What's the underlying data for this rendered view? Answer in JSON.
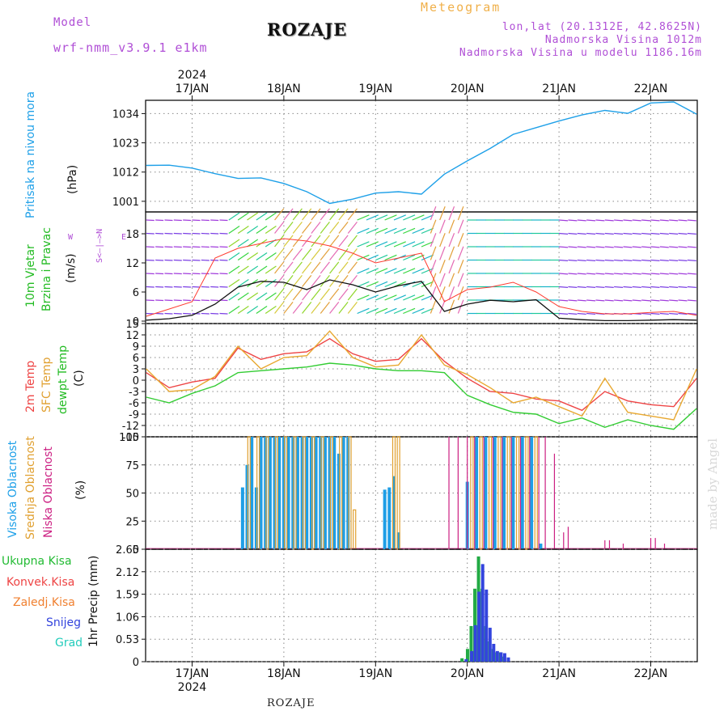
{
  "header": {
    "model_label": "Model",
    "model_name": "wrf-nmm_v3.9.1 e1km",
    "title": "ROZAJE",
    "subtitle": "Meteogram",
    "coords": "lon,lat (20.1312E, 42.8625N)",
    "elevation": "Nadmorska Visina 1012m",
    "model_elevation": "Nadmorska Visina u modelu 1186.16m"
  },
  "footer": {
    "station": "ROZAJE",
    "watermark": "made by Angel"
  },
  "chart_data": [
    {
      "type": "line",
      "panel": "pressure",
      "ylabel": "(hPa)",
      "side_label": "Pritisak na nivou mora",
      "x_ticks": [
        "17JAN",
        "18JAN",
        "19JAN",
        "20JAN",
        "21JAN",
        "22JAN"
      ],
      "year": "2024",
      "yticks": [
        1001,
        1012,
        1023,
        1034
      ],
      "ylim": [
        997,
        1039
      ],
      "color": "#1ea0e8",
      "x": [
        -0.5,
        -0.25,
        0,
        0.25,
        0.5,
        0.75,
        1.0,
        1.25,
        1.5,
        1.75,
        2.0,
        2.25,
        2.5,
        2.75,
        3.0,
        3.25,
        3.5,
        3.75,
        4.0,
        4.25,
        4.5,
        4.75,
        5.0,
        5.25,
        5.5
      ],
      "values": [
        1014.5,
        1014.6,
        1013.5,
        1011.4,
        1009.6,
        1009.8,
        1007.7,
        1004.6,
        1000.2,
        1001.8,
        1004.1,
        1004.6,
        1003.7,
        1011.2,
        1016.2,
        1020.9,
        1026.2,
        1028.7,
        1031.2,
        1033.5,
        1035.2,
        1034.1,
        1038.0,
        1038.4,
        1033.8
      ]
    },
    {
      "type": "line",
      "panel": "wind",
      "ylabel": "(m/s)",
      "side_labels": [
        "10m Vjetar",
        "Brzina i Pravac"
      ],
      "compass_labels": [
        "N",
        "W",
        "E",
        "S"
      ],
      "yticks": [
        0,
        6,
        12,
        18
      ],
      "ylim": [
        -0.5,
        22.5
      ],
      "series": [
        {
          "name": "speed",
          "color": "#111111",
          "x": [
            -0.5,
            -0.25,
            0,
            0.25,
            0.5,
            0.75,
            1.0,
            1.25,
            1.5,
            1.75,
            2.0,
            2.25,
            2.5,
            2.75,
            3.0,
            3.25,
            3.5,
            3.75,
            4.0,
            4.25,
            4.5,
            4.75,
            5.0,
            5.25,
            5.5
          ],
          "values": [
            0.2,
            0.5,
            1.2,
            3.5,
            7.0,
            8.2,
            8.0,
            6.5,
            8.5,
            7.5,
            6.0,
            7.3,
            8.2,
            2.0,
            3.5,
            4.3,
            4.0,
            4.4,
            0.6,
            0.3,
            0.1,
            0.1,
            0.2,
            0.3,
            0.2
          ]
        },
        {
          "name": "gust",
          "color": "#ff3b30",
          "x": [
            -0.5,
            -0.25,
            0,
            0.25,
            0.5,
            0.75,
            1.0,
            1.25,
            1.5,
            1.75,
            2.0,
            2.25,
            2.5,
            2.75,
            3.0,
            3.25,
            3.5,
            3.75,
            4.0,
            4.25,
            4.5,
            4.75,
            5.0,
            5.25,
            5.5
          ],
          "values": [
            1.0,
            2.5,
            4.0,
            13.0,
            15.0,
            16.0,
            17.0,
            16.5,
            15.5,
            14.0,
            12.0,
            13.0,
            14.0,
            4.0,
            6.5,
            7.0,
            8.0,
            6.0,
            3.0,
            2.0,
            1.5,
            1.5,
            1.8,
            2.0,
            1.2
          ]
        }
      ]
    },
    {
      "type": "line",
      "panel": "temperature",
      "ylabel": "(C)",
      "side_labels": [
        "2m Temp",
        "SFC Temp",
        "dewpt Temp"
      ],
      "yticks": [
        -15,
        -12,
        -9,
        -6,
        -3,
        0,
        3,
        6,
        9,
        12,
        15
      ],
      "ylim": [
        -15,
        15
      ],
      "series": [
        {
          "name": "2m Temp",
          "color": "#ee4444",
          "x": [
            -0.5,
            -0.25,
            0,
            0.25,
            0.5,
            0.75,
            1.0,
            1.25,
            1.5,
            1.75,
            2.0,
            2.25,
            2.5,
            2.75,
            3.0,
            3.25,
            3.5,
            3.75,
            4.0,
            4.25,
            4.5,
            4.75,
            5.0,
            5.25,
            5.5
          ],
          "values": [
            2.0,
            -2.0,
            -0.5,
            0.5,
            8.5,
            5.5,
            7.0,
            7.5,
            11.0,
            7.0,
            5.0,
            5.5,
            11.0,
            5.0,
            0.5,
            -3.0,
            -3.5,
            -5.0,
            -5.5,
            -8.0,
            -3.0,
            -5.5,
            -6.5,
            -7.0,
            0.5
          ]
        },
        {
          "name": "SFC Temp",
          "color": "#e8a830",
          "x": [
            -0.5,
            -0.25,
            0,
            0.25,
            0.5,
            0.75,
            1.0,
            1.25,
            1.5,
            1.75,
            2.0,
            2.25,
            2.5,
            2.75,
            3.0,
            3.25,
            3.5,
            3.75,
            4.0,
            4.25,
            4.5,
            4.75,
            5.0,
            5.25,
            5.5
          ],
          "values": [
            3.0,
            -3.0,
            -2.5,
            1.0,
            9.0,
            3.0,
            6.0,
            6.5,
            13.0,
            6.0,
            3.5,
            4.0,
            12.0,
            4.0,
            1.5,
            -2.0,
            -6.0,
            -4.5,
            -7.0,
            -9.5,
            0.5,
            -8.5,
            -9.5,
            -10.5,
            3.0
          ]
        },
        {
          "name": "dewpt Temp",
          "color": "#33cc33",
          "x": [
            -0.5,
            -0.25,
            0,
            0.25,
            0.5,
            0.75,
            1.0,
            1.25,
            1.5,
            1.75,
            2.0,
            2.25,
            2.5,
            2.75,
            3.0,
            3.25,
            3.5,
            3.75,
            4.0,
            4.25,
            4.5,
            4.75,
            5.0,
            5.25,
            5.5
          ],
          "values": [
            -4.5,
            -6.0,
            -3.5,
            -1.5,
            2.0,
            2.5,
            3.0,
            3.5,
            4.5,
            4.0,
            3.0,
            2.5,
            2.5,
            2.0,
            -4.0,
            -6.5,
            -8.5,
            -9.0,
            -11.5,
            -10.0,
            -12.5,
            -10.5,
            -12.0,
            -13.0,
            -7.5
          ]
        }
      ]
    },
    {
      "type": "bar",
      "panel": "cloud",
      "ylabel": "(%)",
      "side_labels": [
        "Visoka Oblacnost",
        "Srednja Oblacnost",
        "Niska Oblacnost"
      ],
      "yticks": [
        0,
        25,
        50,
        75,
        100
      ],
      "ylim": [
        0,
        100
      ],
      "series": [
        {
          "name": "Visoka Oblacnost",
          "color": "#1e9ee6",
          "bars": [
            [
              0.55,
              55
            ],
            [
              0.6,
              75
            ],
            [
              0.65,
              100
            ],
            [
              0.7,
              55
            ],
            [
              0.75,
              100
            ],
            [
              0.8,
              100
            ],
            [
              0.85,
              100
            ],
            [
              0.9,
              100
            ],
            [
              0.95,
              100
            ],
            [
              1.0,
              100
            ],
            [
              1.05,
              100
            ],
            [
              1.1,
              100
            ],
            [
              1.15,
              100
            ],
            [
              1.2,
              100
            ],
            [
              1.25,
              100
            ],
            [
              1.3,
              100
            ],
            [
              1.35,
              100
            ],
            [
              1.4,
              100
            ],
            [
              1.45,
              100
            ],
            [
              1.5,
              100
            ],
            [
              1.55,
              100
            ],
            [
              1.6,
              85
            ],
            [
              1.65,
              100
            ],
            [
              1.7,
              100
            ],
            [
              2.1,
              53
            ],
            [
              2.15,
              55
            ],
            [
              2.2,
              65
            ],
            [
              2.25,
              15
            ],
            [
              3.0,
              60
            ],
            [
              3.1,
              100
            ],
            [
              3.2,
              100
            ],
            [
              3.3,
              100
            ],
            [
              3.4,
              100
            ],
            [
              3.5,
              100
            ],
            [
              3.6,
              100
            ],
            [
              3.7,
              100
            ],
            [
              3.8,
              5
            ]
          ]
        },
        {
          "name": "Srednja Oblacnost",
          "color": "#e0a030",
          "bars": [
            [
              0.62,
              100
            ],
            [
              0.72,
              100
            ],
            [
              0.82,
              100
            ],
            [
              0.92,
              100
            ],
            [
              1.02,
              100
            ],
            [
              1.12,
              100
            ],
            [
              1.22,
              100
            ],
            [
              1.32,
              100
            ],
            [
              1.42,
              100
            ],
            [
              1.52,
              100
            ],
            [
              1.62,
              100
            ],
            [
              1.72,
              100
            ],
            [
              1.77,
              35
            ],
            [
              2.2,
              100
            ],
            [
              2.25,
              100
            ],
            [
              3.05,
              100
            ],
            [
              3.15,
              100
            ],
            [
              3.25,
              100
            ],
            [
              3.35,
              100
            ],
            [
              3.45,
              100
            ],
            [
              3.55,
              100
            ],
            [
              3.65,
              100
            ],
            [
              3.75,
              100
            ]
          ]
        },
        {
          "name": "Niska Oblacnost",
          "color": "#cc1f82",
          "bars": [
            [
              2.8,
              100
            ],
            [
              2.9,
              100
            ],
            [
              3.0,
              100
            ],
            [
              3.08,
              100
            ],
            [
              3.18,
              100
            ],
            [
              3.28,
              100
            ],
            [
              3.38,
              100
            ],
            [
              3.48,
              100
            ],
            [
              3.58,
              100
            ],
            [
              3.68,
              100
            ],
            [
              3.78,
              100
            ],
            [
              3.85,
              100
            ],
            [
              3.95,
              85
            ],
            [
              4.05,
              15
            ],
            [
              4.1,
              20
            ],
            [
              4.5,
              8
            ],
            [
              4.55,
              8
            ],
            [
              4.7,
              5
            ],
            [
              5.0,
              10
            ],
            [
              5.05,
              10
            ],
            [
              5.15,
              5
            ]
          ]
        }
      ]
    },
    {
      "type": "bar",
      "panel": "precip",
      "ylabel": "1hr Precip (mm)",
      "side_labels": [
        "Ukupna Kisa",
        "Konvek.Kisa",
        "Zaledj.Kisa",
        "Snijeg",
        "Grad"
      ],
      "side_colors": [
        "#22bb33",
        "#ee4444",
        "#f08030",
        "#3344dd",
        "#22ccbb"
      ],
      "x_ticks": [
        "17JAN",
        "18JAN",
        "19JAN",
        "20JAN",
        "21JAN",
        "22JAN"
      ],
      "year": "2024",
      "yticks": [
        0,
        0.53,
        1.06,
        1.59,
        2.12,
        2.65
      ],
      "ylim": [
        0,
        2.65
      ],
      "series": [
        {
          "name": "Ukupna Kisa",
          "color": "#22aa44",
          "bars": [
            [
              2.96,
              0.08
            ],
            [
              3.02,
              0.3
            ],
            [
              3.06,
              0.84
            ],
            [
              3.1,
              1.72
            ],
            [
              3.14,
              2.48
            ],
            [
              3.18,
              1.72
            ],
            [
              3.22,
              0.84
            ],
            [
              3.26,
              0.48
            ],
            [
              3.3,
              0.3
            ],
            [
              3.34,
              0.22
            ],
            [
              3.38,
              0.22
            ],
            [
              3.42,
              0.12
            ]
          ]
        },
        {
          "name": "Snijeg",
          "color": "#3344dd",
          "bars": [
            [
              2.97,
              0.06
            ],
            [
              3.03,
              0.25
            ],
            [
              3.07,
              0.86
            ],
            [
              3.11,
              1.65
            ],
            [
              3.15,
              2.3
            ],
            [
              3.19,
              1.7
            ],
            [
              3.23,
              0.8
            ],
            [
              3.27,
              0.42
            ],
            [
              3.31,
              0.25
            ],
            [
              3.35,
              0.22
            ],
            [
              3.39,
              0.2
            ],
            [
              3.43,
              0.1
            ]
          ]
        }
      ]
    }
  ]
}
